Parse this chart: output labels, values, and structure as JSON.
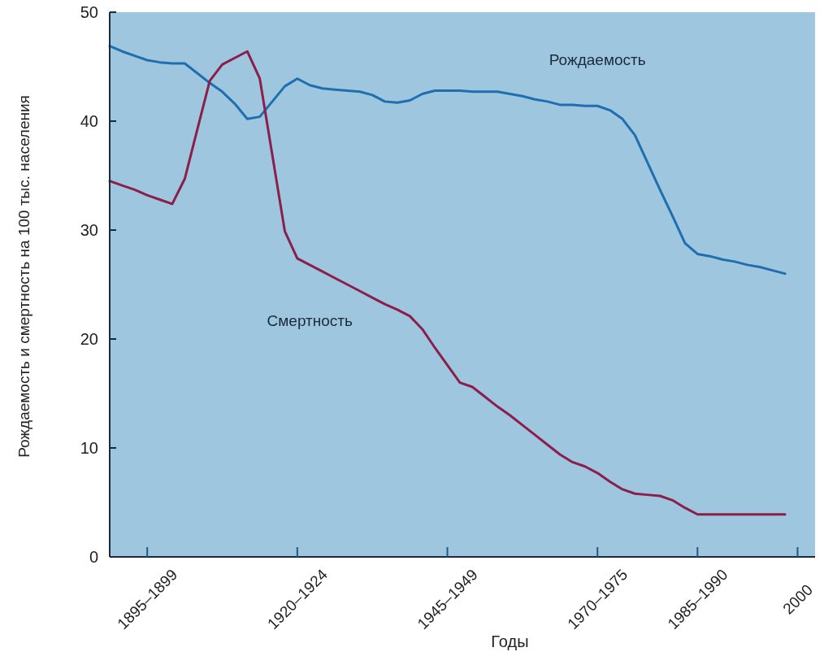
{
  "chart_data": {
    "type": "line",
    "xlabel": "Годы",
    "ylabel": "Рождаемость и смертность на 100 тыс. населения",
    "categories": [
      null,
      null,
      null,
      "1895–1899",
      null,
      null,
      null,
      null,
      null,
      null,
      null,
      null,
      null,
      null,
      null,
      "1920–1924",
      null,
      null,
      null,
      null,
      null,
      null,
      null,
      null,
      null,
      null,
      null,
      "1945–1949",
      null,
      null,
      null,
      null,
      null,
      null,
      null,
      null,
      null,
      null,
      null,
      "1970–1975",
      null,
      null,
      null,
      null,
      null,
      null,
      null,
      "1985–1990",
      null,
      null,
      null,
      null,
      null,
      null,
      null,
      "2000"
    ],
    "ylim": [
      0,
      50
    ],
    "yticks": [
      0,
      10,
      20,
      30,
      40,
      50
    ],
    "grid": false,
    "legend": false,
    "marker": "none",
    "line_style": "solid",
    "series": [
      {
        "name": "Рождаемость",
        "color": "#1f6fb0",
        "values": [
          46.9,
          46.4,
          46.0,
          45.6,
          45.4,
          45.3,
          45.3,
          44.4,
          43.5,
          42.7,
          41.6,
          40.2,
          40.4,
          41.8,
          43.2,
          43.9,
          43.3,
          43.0,
          42.9,
          42.8,
          42.7,
          42.4,
          41.8,
          41.7,
          41.9,
          42.5,
          42.8,
          42.8,
          42.8,
          42.7,
          42.7,
          42.7,
          42.5,
          42.3,
          42.0,
          41.8,
          41.5,
          41.5,
          41.4,
          41.4,
          41.0,
          40.2,
          38.7,
          36.2,
          33.7,
          31.3,
          28.8,
          27.8,
          27.6,
          27.3,
          27.1,
          26.8,
          26.6,
          26.3,
          26.0,
          null
        ]
      },
      {
        "name": "Смертность",
        "color": "#8b1e4a",
        "values": [
          34.5,
          34.1,
          33.7,
          33.2,
          32.8,
          32.4,
          34.7,
          39.2,
          43.7,
          45.2,
          45.8,
          46.4,
          43.9,
          36.9,
          29.9,
          27.4,
          26.8,
          26.2,
          25.6,
          25.0,
          24.4,
          23.8,
          23.2,
          22.7,
          22.1,
          20.9,
          19.2,
          17.6,
          16.0,
          15.6,
          14.7,
          13.8,
          13.0,
          12.1,
          11.2,
          10.3,
          9.4,
          8.7,
          8.3,
          7.7,
          6.9,
          6.2,
          5.8,
          5.7,
          5.6,
          5.2,
          4.5,
          3.9,
          3.9,
          3.9,
          3.9,
          3.9,
          3.9,
          3.9,
          3.9,
          null
        ]
      }
    ]
  }
}
